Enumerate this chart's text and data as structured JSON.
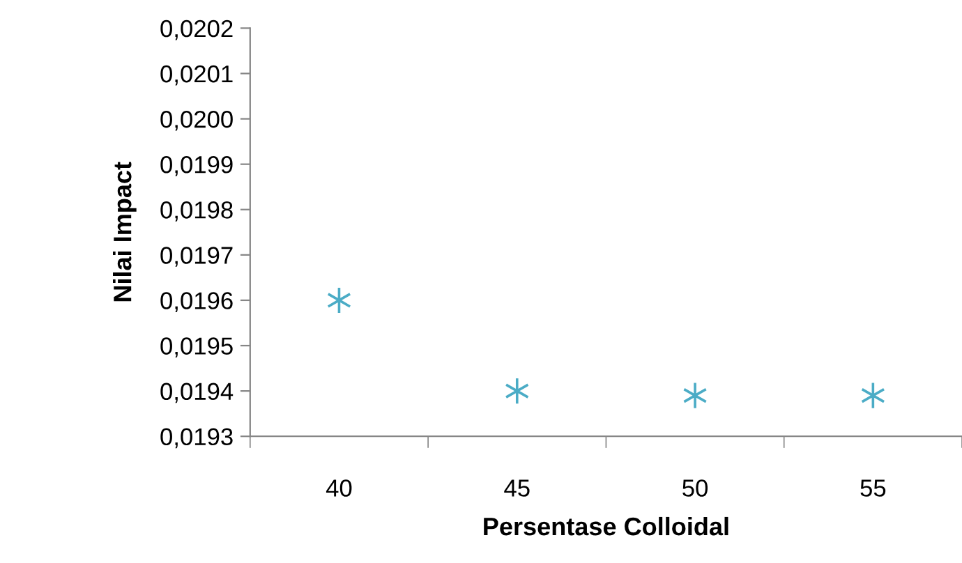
{
  "chart_data": {
    "type": "scatter",
    "xlabel": "Persentase Colloidal",
    "ylabel": "Nilai Impact",
    "categories": [
      "40",
      "45",
      "50",
      "55"
    ],
    "series": [
      {
        "color": "#4bacc6",
        "values": [
          0.0196,
          0.0194,
          0.01939,
          0.01939
        ]
      }
    ],
    "marker": "cross",
    "grid": false,
    "legend": false,
    "ylim": [
      0.0193,
      0.0202
    ],
    "yticks": [
      {
        "value": 0.0193,
        "label": "0,0193"
      },
      {
        "value": 0.0194,
        "label": "0,0194"
      },
      {
        "value": 0.0195,
        "label": "0,0195"
      },
      {
        "value": 0.0196,
        "label": "0,0196"
      },
      {
        "value": 0.0197,
        "label": "0,0197"
      },
      {
        "value": 0.0198,
        "label": "0,0198"
      },
      {
        "value": 0.0199,
        "label": "0,0199"
      },
      {
        "value": 0.02,
        "label": "0,0200"
      },
      {
        "value": 0.0201,
        "label": "0,0201"
      },
      {
        "value": 0.0202,
        "label": "0,0202"
      }
    ]
  }
}
